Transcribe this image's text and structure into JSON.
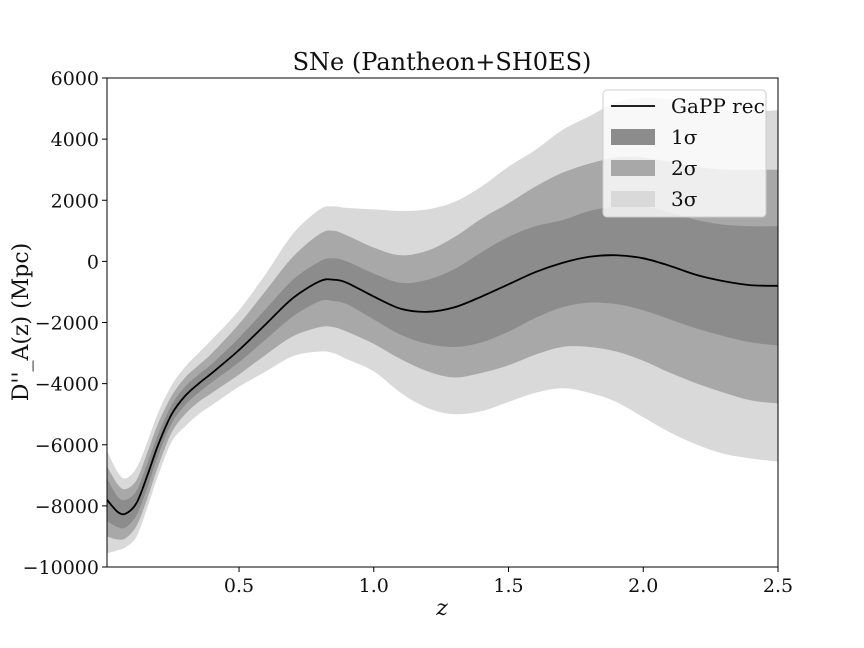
{
  "chart_data": {
    "type": "area",
    "title": "SNe (Pantheon+SH0ES)",
    "xlabel": "z",
    "ylabel": "D''_A(z) (Mpc)",
    "xlim": [
      0.01,
      2.5
    ],
    "ylim": [
      -10000,
      6000
    ],
    "xticks": [
      0.5,
      1.0,
      1.5,
      2.0,
      2.5
    ],
    "xtick_labels": [
      "0.5",
      "1.0",
      "1.5",
      "2.0",
      "2.5"
    ],
    "yticks": [
      -10000,
      -8000,
      -6000,
      -4000,
      -2000,
      0,
      2000,
      4000,
      6000
    ],
    "ytick_labels": [
      "−10000",
      "−8000",
      "−6000",
      "−4000",
      "−2000",
      "0",
      "2000",
      "4000",
      "6000"
    ],
    "grid": false,
    "legend_position": "top-right",
    "x": [
      0.01,
      0.05,
      0.08,
      0.12,
      0.16,
      0.2,
      0.25,
      0.3,
      0.35,
      0.4,
      0.5,
      0.6,
      0.7,
      0.8,
      0.85,
      0.9,
      1.0,
      1.1,
      1.2,
      1.3,
      1.4,
      1.5,
      1.6,
      1.7,
      1.8,
      1.9,
      2.0,
      2.1,
      2.2,
      2.3,
      2.4,
      2.5
    ],
    "series": [
      {
        "name": "GaPP rec",
        "kind": "line",
        "color": "#000000",
        "values": [
          -7800,
          -8200,
          -8250,
          -7900,
          -7000,
          -6000,
          -5000,
          -4400,
          -4000,
          -3650,
          -2900,
          -2050,
          -1200,
          -650,
          -600,
          -700,
          -1150,
          -1550,
          -1650,
          -1500,
          -1150,
          -750,
          -350,
          -50,
          150,
          200,
          100,
          -150,
          -450,
          -650,
          -780,
          -800
        ]
      },
      {
        "name": "1σ",
        "kind": "band",
        "color": "#8c8c8c",
        "lower": [
          -8500,
          -8700,
          -8700,
          -8300,
          -7400,
          -6350,
          -5300,
          -4700,
          -4300,
          -3950,
          -3300,
          -2550,
          -1800,
          -1300,
          -1300,
          -1400,
          -1900,
          -2400,
          -2700,
          -2800,
          -2650,
          -2300,
          -1850,
          -1500,
          -1350,
          -1400,
          -1600,
          -1900,
          -2200,
          -2450,
          -2650,
          -2750
        ],
        "upper": [
          -7100,
          -7700,
          -7800,
          -7500,
          -6600,
          -5650,
          -4700,
          -4100,
          -3700,
          -3350,
          -2500,
          -1550,
          -600,
          0,
          100,
          0,
          -400,
          -700,
          -600,
          -250,
          300,
          800,
          1150,
          1350,
          1650,
          1800,
          1800,
          1600,
          1350,
          1200,
          1150,
          1150
        ]
      },
      {
        "name": "2σ",
        "kind": "band",
        "color": "#a8a8a8",
        "lower": [
          -9000,
          -9100,
          -9050,
          -8650,
          -7750,
          -6700,
          -5600,
          -5000,
          -4600,
          -4300,
          -3700,
          -3050,
          -2450,
          -2150,
          -2150,
          -2300,
          -2700,
          -3200,
          -3600,
          -3800,
          -3650,
          -3400,
          -3050,
          -2800,
          -2800,
          -2950,
          -3250,
          -3650,
          -4000,
          -4300,
          -4550,
          -4650
        ],
        "upper": [
          -6700,
          -7300,
          -7450,
          -7150,
          -6250,
          -5300,
          -4400,
          -3800,
          -3400,
          -3000,
          -2050,
          -950,
          150,
          900,
          1000,
          850,
          450,
          200,
          350,
          800,
          1400,
          1900,
          2450,
          2900,
          3200,
          3400,
          3400,
          3250,
          3100,
          3000,
          3000,
          3000
        ]
      },
      {
        "name": "3σ",
        "kind": "band",
        "color": "#d9d9d9",
        "lower": [
          -9550,
          -9450,
          -9350,
          -9000,
          -8050,
          -7000,
          -5900,
          -5400,
          -5000,
          -4700,
          -4100,
          -3600,
          -3100,
          -2950,
          -3000,
          -3200,
          -3600,
          -4300,
          -4800,
          -5000,
          -4900,
          -4600,
          -4300,
          -4150,
          -4300,
          -4600,
          -5100,
          -5600,
          -6000,
          -6300,
          -6450,
          -6550
        ],
        "upper": [
          -6200,
          -6900,
          -7100,
          -6750,
          -5900,
          -4950,
          -4050,
          -3450,
          -3000,
          -2550,
          -1600,
          -400,
          900,
          1700,
          1800,
          1750,
          1700,
          1650,
          1700,
          1950,
          2450,
          3100,
          3650,
          4300,
          4750,
          5200,
          5350,
          5300,
          5100,
          4950,
          4900,
          4950
        ]
      }
    ]
  }
}
